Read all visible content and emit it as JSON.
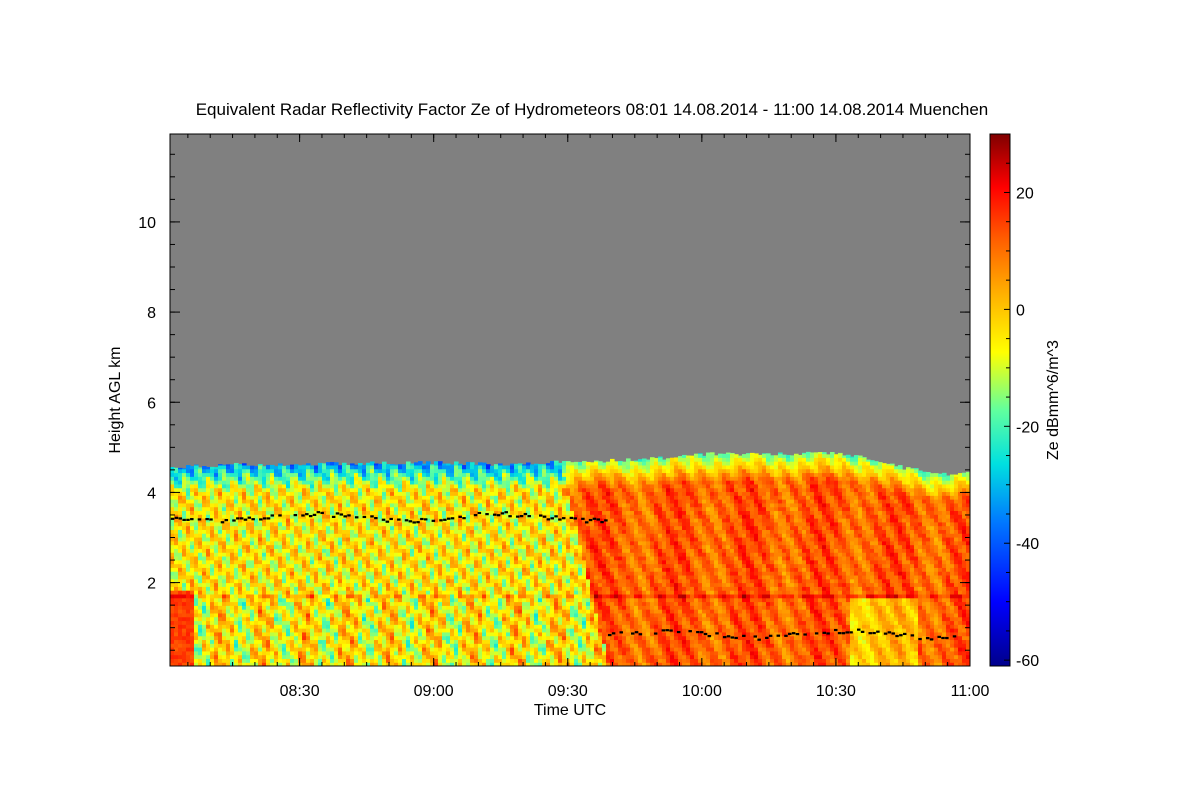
{
  "chart_data": {
    "type": "heatmap",
    "title": "Equivalent Radar Reflectivity Factor Ze of Hydrometeors   08:01 14.08.2014 - 11:00 14.08.2014 Muenchen",
    "xlabel": "Time UTC",
    "ylabel": "Height AGL km",
    "xlim": [
      8.0167,
      11.0
    ],
    "ylim": [
      0.15,
      11.95
    ],
    "x_ticks": [
      {
        "value": 8.5,
        "label": "08:30"
      },
      {
        "value": 9.0,
        "label": "09:00"
      },
      {
        "value": 9.5,
        "label": "09:30"
      },
      {
        "value": 10.0,
        "label": "10:00"
      },
      {
        "value": 10.5,
        "label": "10:30"
      },
      {
        "value": 11.0,
        "label": "11:00"
      }
    ],
    "y_ticks": [
      {
        "value": 2,
        "label": "2"
      },
      {
        "value": 4,
        "label": "4"
      },
      {
        "value": 6,
        "label": "6"
      },
      {
        "value": 8,
        "label": "8"
      },
      {
        "value": 10,
        "label": "10"
      }
    ],
    "colorbar": {
      "label": "Ze dBmm^6/m^3",
      "range": [
        -61,
        30
      ],
      "ticks": [
        {
          "value": 20,
          "label": "20"
        },
        {
          "value": 0,
          "label": "0"
        },
        {
          "value": -20,
          "label": "-20"
        },
        {
          "value": -40,
          "label": "-40"
        },
        {
          "value": -60,
          "label": "-60"
        }
      ]
    },
    "no_data_color": "#808080",
    "echo_top_km": [
      {
        "t": 8.02,
        "h": 4.55
      },
      {
        "t": 8.25,
        "h": 4.62
      },
      {
        "t": 8.5,
        "h": 4.62
      },
      {
        "t": 8.75,
        "h": 4.65
      },
      {
        "t": 9.0,
        "h": 4.66
      },
      {
        "t": 9.25,
        "h": 4.62
      },
      {
        "t": 9.5,
        "h": 4.68
      },
      {
        "t": 9.75,
        "h": 4.72
      },
      {
        "t": 9.9,
        "h": 4.78
      },
      {
        "t": 10.0,
        "h": 4.85
      },
      {
        "t": 10.25,
        "h": 4.85
      },
      {
        "t": 10.5,
        "h": 4.88
      },
      {
        "t": 10.6,
        "h": 4.8
      },
      {
        "t": 10.75,
        "h": 4.55
      },
      {
        "t": 10.9,
        "h": 4.4
      },
      {
        "t": 11.0,
        "h": 4.45
      }
    ],
    "melting_layer_km": 1.72,
    "reflectivity_regions": [
      {
        "t_start": 8.02,
        "t_end": 9.62,
        "h_min": 0.2,
        "h_max": 4.6,
        "typical_dbz": -5,
        "description": "mixed -25 to +15 dBZ fall streaks"
      },
      {
        "t_start": 9.62,
        "t_end": 10.95,
        "h_min": 0.2,
        "h_max": 4.8,
        "typical_dbz": 12,
        "description": "strong 5 to 20 dBZ precipitation"
      }
    ],
    "black_markers": [
      {
        "t_start": 8.02,
        "t_end": 9.65,
        "h": 3.45,
        "description": "cloud base detections"
      },
      {
        "t_start": 9.65,
        "t_end": 10.95,
        "h": 0.85,
        "description": "cloud base detections"
      }
    ]
  }
}
